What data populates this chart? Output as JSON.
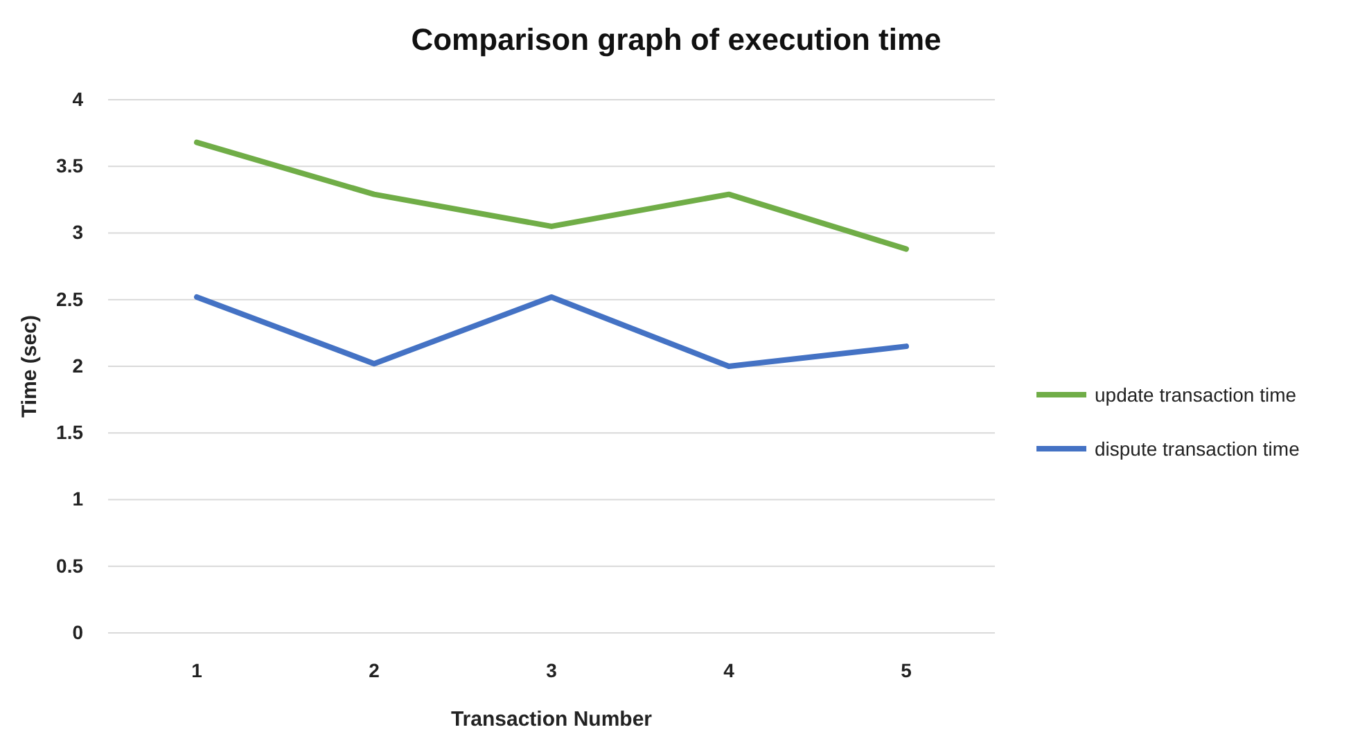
{
  "chart_data": {
    "type": "line",
    "title": "Comparison graph of execution time",
    "xlabel": "Transaction  Number",
    "ylabel": "Time (sec)",
    "categories": [
      "1",
      "2",
      "3",
      "4",
      "5"
    ],
    "series": [
      {
        "name": "update transaction time",
        "color": "#70ad47",
        "values": [
          3.68,
          3.29,
          3.05,
          3.29,
          2.88
        ]
      },
      {
        "name": "dispute transaction time",
        "color": "#4472c4",
        "values": [
          2.52,
          2.02,
          2.52,
          2.0,
          2.15
        ]
      }
    ],
    "ylim": [
      0,
      4
    ],
    "yticks": [
      0,
      0.5,
      1,
      1.5,
      2,
      2.5,
      3,
      3.5,
      4
    ],
    "grid": "y",
    "legend": "right",
    "marker": "none",
    "line_style": "solid"
  }
}
